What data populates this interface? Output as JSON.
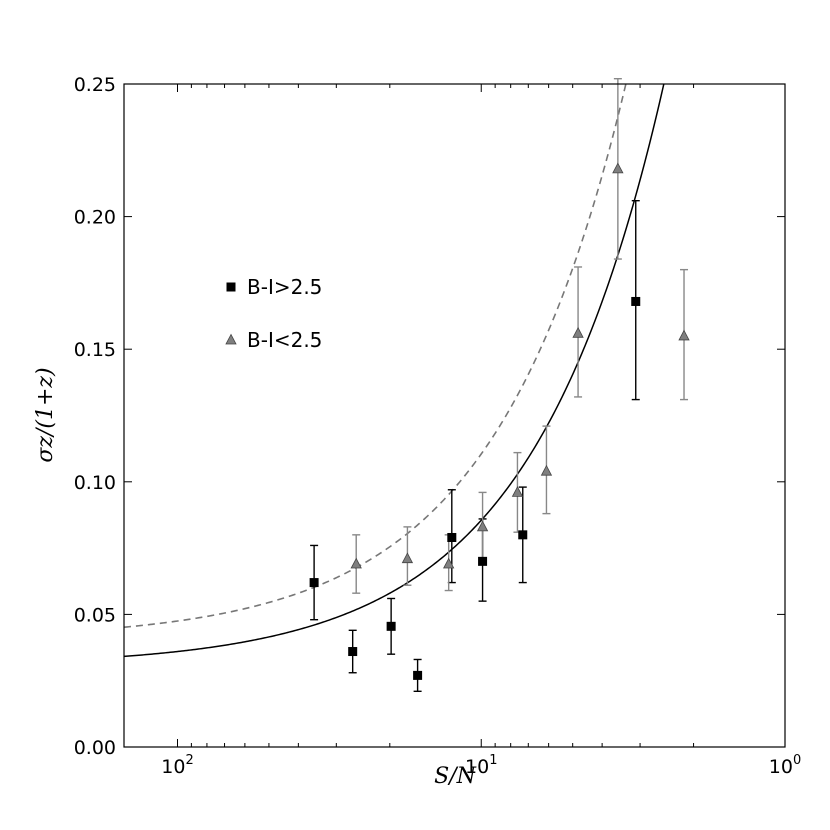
{
  "chart_data": {
    "type": "scatter",
    "xlabel": "S/N",
    "ylabel": "σz/(1+z)",
    "x_scale": "log",
    "x_reversed": true,
    "xlim": [
      150,
      1
    ],
    "ylim": [
      0,
      0.25
    ],
    "x_ticks": [
      {
        "value": 100,
        "base": "10",
        "exp": "2"
      },
      {
        "value": 10,
        "base": "10",
        "exp": "1"
      },
      {
        "value": 1,
        "base": "10",
        "exp": "0"
      }
    ],
    "y_ticks": [
      "0.00",
      "0.05",
      "0.10",
      "0.15",
      "0.20",
      "0.25"
    ],
    "grid": false,
    "legend_position": "upper-left",
    "series": [
      {
        "name": "B-I>2.5",
        "marker": "square",
        "color": "#000000",
        "error_color": "#000000",
        "points": [
          {
            "x": 35.5,
            "y": 0.062,
            "lo": 0.048,
            "hi": 0.076
          },
          {
            "x": 26.5,
            "y": 0.036,
            "lo": 0.028,
            "hi": 0.044
          },
          {
            "x": 19.8,
            "y": 0.0455,
            "lo": 0.035,
            "hi": 0.056
          },
          {
            "x": 16.2,
            "y": 0.027,
            "lo": 0.021,
            "hi": 0.033
          },
          {
            "x": 12.5,
            "y": 0.079,
            "lo": 0.062,
            "hi": 0.097
          },
          {
            "x": 9.9,
            "y": 0.07,
            "lo": 0.055,
            "hi": 0.086
          },
          {
            "x": 7.3,
            "y": 0.08,
            "lo": 0.062,
            "hi": 0.098
          },
          {
            "x": 3.1,
            "y": 0.168,
            "lo": 0.131,
            "hi": 0.206
          }
        ]
      },
      {
        "name": "B-I<2.5",
        "marker": "triangle",
        "color": "#7f7f7f",
        "error_color": "#888888",
        "points": [
          {
            "x": 25.8,
            "y": 0.069,
            "lo": 0.058,
            "hi": 0.08
          },
          {
            "x": 17.5,
            "y": 0.071,
            "lo": 0.061,
            "hi": 0.083
          },
          {
            "x": 12.8,
            "y": 0.069,
            "lo": 0.059,
            "hi": 0.08
          },
          {
            "x": 9.9,
            "y": 0.083,
            "lo": 0.071,
            "hi": 0.096
          },
          {
            "x": 7.6,
            "y": 0.096,
            "lo": 0.081,
            "hi": 0.111
          },
          {
            "x": 6.1,
            "y": 0.104,
            "lo": 0.088,
            "hi": 0.121
          },
          {
            "x": 4.8,
            "y": 0.156,
            "lo": 0.132,
            "hi": 0.181
          },
          {
            "x": 3.55,
            "y": 0.218,
            "lo": 0.184,
            "hi": 0.252
          },
          {
            "x": 2.15,
            "y": 0.155,
            "lo": 0.131,
            "hi": 0.18
          }
        ]
      }
    ],
    "curves": [
      {
        "series": "B-I>2.5",
        "style": "solid",
        "color": "#000000",
        "a": 0.0305,
        "b": 0.55
      },
      {
        "series": "B-I<2.5",
        "style": "dashed",
        "color": "#777777",
        "a": 0.0405,
        "b": 0.7
      }
    ]
  }
}
